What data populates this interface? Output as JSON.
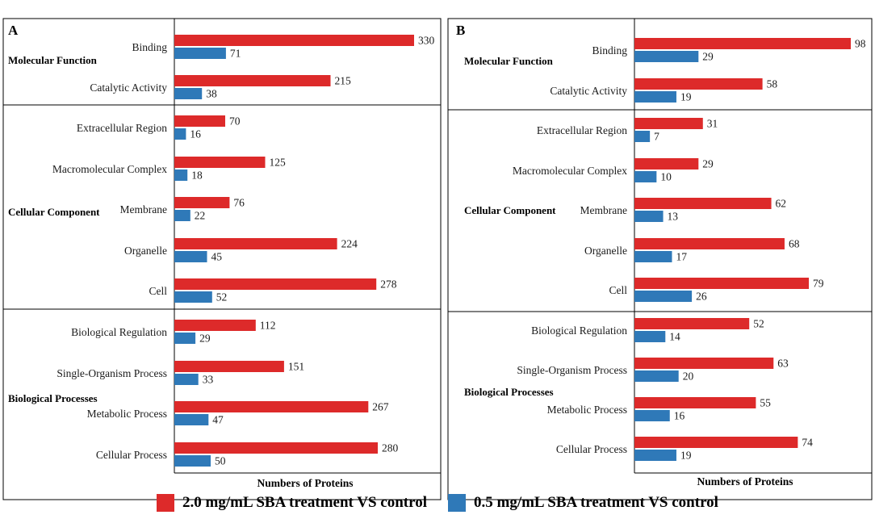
{
  "colors": {
    "series1": "#dd2a2a",
    "series2": "#2f79b8"
  },
  "legend": [
    {
      "label": "2.0 mg/mL SBA treatment VS control",
      "color": "#dd2a2a"
    },
    {
      "label": "0.5 mg/mL SBA treatment VS control",
      "color": "#2f79b8"
    }
  ],
  "chart_data": [
    {
      "type": "bar",
      "orientation": "horizontal",
      "panel": "A",
      "xlabel": "Numbers of Proteins",
      "xlim": [
        0,
        330
      ],
      "series": [
        {
          "name": "2.0 mg/mL SBA treatment VS control",
          "values": [
            330,
            215,
            70,
            125,
            76,
            224,
            278,
            112,
            151,
            267,
            280
          ]
        },
        {
          "name": "0.5 mg/mL SBA treatment VS control",
          "values": [
            71,
            38,
            16,
            18,
            22,
            45,
            52,
            29,
            33,
            47,
            50
          ]
        }
      ],
      "categories": [
        "Binding",
        "Catalytic Activity",
        "Extracellular Region",
        "Macromolecular Complex",
        "Membrane",
        "Organelle",
        "Cell",
        "Biological Regulation",
        "Single-Organism Process",
        "Metabolic Process",
        "Cellular Process"
      ],
      "groups": [
        {
          "name": "Molecular Function",
          "categories": [
            "Binding",
            "Catalytic Activity"
          ]
        },
        {
          "name": "Cellular Component",
          "categories": [
            "Extracellular Region",
            "Macromolecular Complex",
            "Membrane",
            "Organelle",
            "Cell"
          ]
        },
        {
          "name": "Biological Processes",
          "categories": [
            "Biological Regulation",
            "Single-Organism Process",
            "Metabolic Process",
            "Cellular Process"
          ]
        }
      ]
    },
    {
      "type": "bar",
      "orientation": "horizontal",
      "panel": "B",
      "xlabel": "Numbers of Proteins",
      "xlim": [
        0,
        98
      ],
      "series": [
        {
          "name": "2.0 mg/mL SBA treatment VS control",
          "values": [
            98,
            58,
            31,
            29,
            62,
            68,
            79,
            52,
            63,
            55,
            74
          ]
        },
        {
          "name": "0.5 mg/mL SBA treatment VS control",
          "values": [
            29,
            19,
            7,
            10,
            13,
            17,
            26,
            14,
            20,
            16,
            19
          ]
        }
      ],
      "categories": [
        "Binding",
        "Catalytic Activity",
        "Extracellular Region",
        "Macromolecular Complex",
        "Membrane",
        "Organelle",
        "Cell",
        "Biological Regulation",
        "Single-Organism Process",
        "Metabolic Process",
        "Cellular Process"
      ],
      "groups": [
        {
          "name": "Molecular Function",
          "categories": [
            "Binding",
            "Catalytic Activity"
          ]
        },
        {
          "name": "Cellular Component",
          "categories": [
            "Extracellular Region",
            "Macromolecular Complex",
            "Membrane",
            "Organelle",
            "Cell"
          ]
        },
        {
          "name": "Biological Processes",
          "categories": [
            "Biological Regulation",
            "Single-Organism Process",
            "Metabolic Process",
            "Cellular Process"
          ]
        }
      ]
    }
  ]
}
